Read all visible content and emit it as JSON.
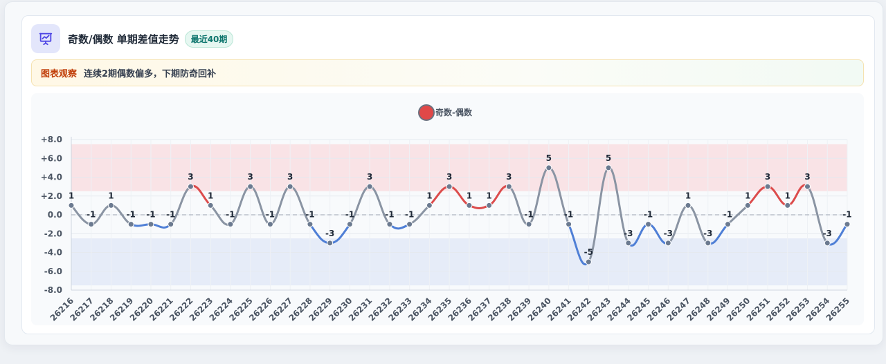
{
  "header": {
    "title": "奇数/偶数 单期差值走势",
    "badge": "最近40期",
    "icon": "presentation-chart-icon"
  },
  "insight": {
    "label": "图表观察",
    "text": "连续2期偶数偏多，下期防奇回补"
  },
  "colors": {
    "positive": "#dc4c4c",
    "negative": "#4f7fd6",
    "neutral": "#8a94a3",
    "positive_band": "#f9e3e6",
    "negative_band": "#e6ecf8",
    "legend_dot": "#e04848"
  },
  "chart_data": {
    "type": "line",
    "title": "",
    "xlabel": "",
    "ylabel": "",
    "legend": {
      "label": "奇数-偶数",
      "placement": "top-center"
    },
    "categories": [
      "26216",
      "26217",
      "26218",
      "26219",
      "26220",
      "26221",
      "26222",
      "26223",
      "26224",
      "26225",
      "26226",
      "26227",
      "26228",
      "26229",
      "26230",
      "26231",
      "26232",
      "26233",
      "26234",
      "26235",
      "26236",
      "26237",
      "26238",
      "26239",
      "26240",
      "26241",
      "26242",
      "26243",
      "26244",
      "26245",
      "26246",
      "26247",
      "26248",
      "26249",
      "26250",
      "26251",
      "26252",
      "26253",
      "26254",
      "26255"
    ],
    "series": [
      {
        "name": "奇数-偶数",
        "values": [
          1,
          -1,
          1,
          -1,
          -1,
          -1,
          3,
          1,
          -1,
          3,
          -1,
          3,
          -1,
          -3,
          -1,
          3,
          -1,
          -1,
          1,
          3,
          1,
          1,
          3,
          -1,
          5,
          -1,
          -5,
          5,
          -3,
          -1,
          -3,
          1,
          -3,
          -1,
          1,
          3,
          1,
          3,
          -3,
          -1
        ]
      }
    ],
    "ylim": [
      -8,
      8
    ],
    "y_ticks": [
      8,
      6,
      4,
      2,
      0,
      -2,
      -4,
      -6,
      -8
    ],
    "y_tick_labels": [
      "+8.0",
      "+6.0",
      "+4.0",
      "+2.0",
      "0.0",
      "-2.0",
      "-4.0",
      "-6.0",
      "-8.0"
    ],
    "bands": [
      {
        "from": 2.5,
        "to": 7.5,
        "kind": "positive"
      },
      {
        "from": -7.5,
        "to": -2.5,
        "kind": "negative"
      }
    ],
    "grid": true,
    "zero_line": "dashed"
  }
}
